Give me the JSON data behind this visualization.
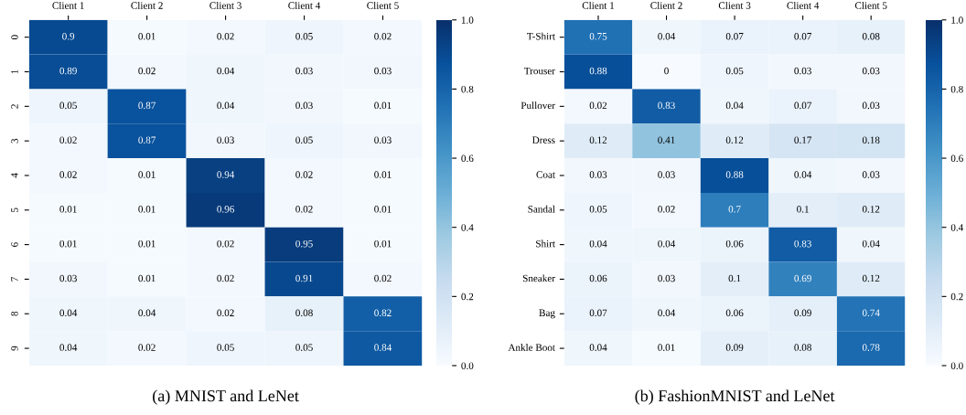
{
  "chart_data": [
    {
      "type": "heatmap",
      "title": "(a) MNIST and LeNet",
      "categories": [
        "Client 1",
        "Client 2",
        "Client 3",
        "Client 4",
        "Client 5"
      ],
      "y_categories": [
        "0",
        "1",
        "2",
        "3",
        "4",
        "5",
        "6",
        "7",
        "8",
        "9"
      ],
      "cells": [
        [
          0.9,
          0.01,
          0.02,
          0.05,
          0.02
        ],
        [
          0.89,
          0.02,
          0.04,
          0.03,
          0.03
        ],
        [
          0.05,
          0.87,
          0.04,
          0.03,
          0.01
        ],
        [
          0.02,
          0.87,
          0.03,
          0.05,
          0.03
        ],
        [
          0.02,
          0.01,
          0.94,
          0.02,
          0.01
        ],
        [
          0.01,
          0.01,
          0.96,
          0.02,
          0.01
        ],
        [
          0.01,
          0.01,
          0.02,
          0.95,
          0.01
        ],
        [
          0.03,
          0.01,
          0.02,
          0.91,
          0.02
        ],
        [
          0.04,
          0.04,
          0.02,
          0.08,
          0.82
        ],
        [
          0.04,
          0.02,
          0.05,
          0.05,
          0.84
        ]
      ],
      "clim": [
        0,
        1
      ],
      "cticks": [
        {
          "value": 0,
          "label": "0.0"
        },
        {
          "value": 0.2,
          "label": "0.2"
        },
        {
          "value": 0.4,
          "label": "0.4"
        },
        {
          "value": 0.6,
          "label": "0.6"
        },
        {
          "value": 0.8,
          "label": "0.8"
        },
        {
          "value": 1,
          "label": "1.0"
        }
      ],
      "data_labels": true
    },
    {
      "type": "heatmap",
      "title": "(b) FashionMNIST and LeNet",
      "categories": [
        "Client 1",
        "Client 2",
        "Client 3",
        "Client 4",
        "Client 5"
      ],
      "y_categories": [
        "T-Shirt",
        "Trouser",
        "Pullover",
        "Dress",
        "Coat",
        "Sandal",
        "Shirt",
        "Sneaker",
        "Bag",
        "Ankle Boot"
      ],
      "cells": [
        [
          0.75,
          0.04,
          0.07,
          0.07,
          0.08
        ],
        [
          0.88,
          0,
          0.05,
          0.03,
          0.03
        ],
        [
          0.02,
          0.83,
          0.04,
          0.07,
          0.03
        ],
        [
          0.12,
          0.41,
          0.12,
          0.17,
          0.18
        ],
        [
          0.03,
          0.03,
          0.88,
          0.04,
          0.03
        ],
        [
          0.05,
          0.02,
          0.7,
          0.1,
          0.12
        ],
        [
          0.04,
          0.04,
          0.06,
          0.83,
          0.04
        ],
        [
          0.06,
          0.03,
          0.1,
          0.69,
          0.12
        ],
        [
          0.07,
          0.04,
          0.06,
          0.09,
          0.74
        ],
        [
          0.04,
          0.01,
          0.09,
          0.08,
          0.78
        ]
      ],
      "clim": [
        0,
        1
      ],
      "cticks": [
        {
          "value": 0,
          "label": "0.0"
        },
        {
          "value": 0.2,
          "label": "0.2"
        },
        {
          "value": 0.4,
          "label": "0.4"
        },
        {
          "value": 0.6,
          "label": "0.6"
        },
        {
          "value": 0.8,
          "label": "0.8"
        },
        {
          "value": 1,
          "label": "1.0"
        }
      ],
      "data_labels": true
    }
  ]
}
